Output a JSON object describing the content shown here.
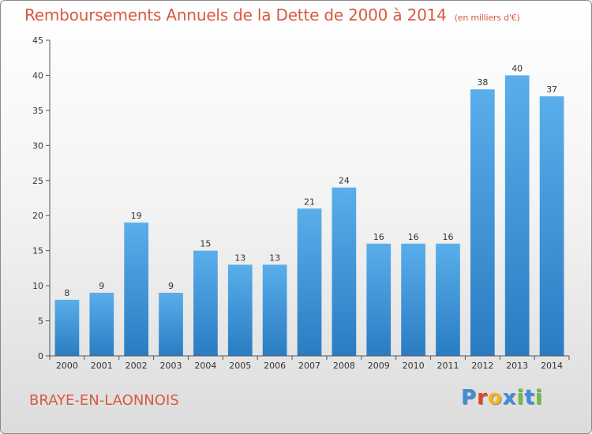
{
  "chart_data": {
    "type": "bar",
    "title": "Remboursements Annuels de la Dette de 2000 à 2014",
    "subtitle": "(en milliers d'€)",
    "categories": [
      "2000",
      "2001",
      "2002",
      "2003",
      "2004",
      "2005",
      "2006",
      "2007",
      "2008",
      "2009",
      "2010",
      "2011",
      "2012",
      "2013",
      "2014"
    ],
    "values": [
      8,
      9,
      19,
      9,
      15,
      13,
      13,
      21,
      24,
      16,
      16,
      16,
      38,
      40,
      37
    ],
    "ylim": [
      0,
      45
    ],
    "yticks": [
      0,
      5,
      10,
      15,
      20,
      25,
      30,
      35,
      40,
      45
    ],
    "grid": false,
    "bar_color": "#4a9fe0"
  },
  "footer": {
    "place": "BRAYE-EN-LAONNOIS",
    "logo_letters": [
      "P",
      "r",
      "o",
      "x",
      "i",
      "t",
      "i"
    ],
    "logo_colors": [
      "#3c8fd8",
      "#e0452f",
      "#f2b51c",
      "#3c8fd8",
      "#6fbf3c",
      "#3c8fd8",
      "#6fbf3c"
    ]
  }
}
